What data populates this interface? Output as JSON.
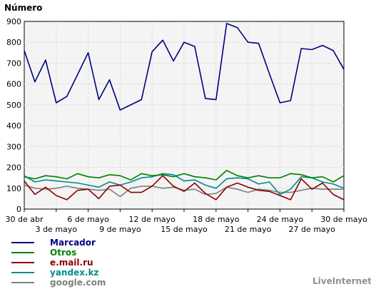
{
  "chart_data": {
    "type": "line",
    "title": "",
    "ylabel": "Número",
    "xlabel": "",
    "ylim": [
      0,
      900
    ],
    "yticks": [
      0,
      100,
      200,
      300,
      400,
      500,
      600,
      700,
      800,
      900
    ],
    "grid": true,
    "legend_placement": "bottom-left",
    "x_tick_labels_top": [
      "30 de abr",
      "6 de mayo",
      "12 de mayo",
      "18 de mayo",
      "24 de mayo",
      "30 de mayo"
    ],
    "x_tick_labels_bottom": [
      "3 de mayo",
      "9 de mayo",
      "15 de mayo",
      "21 de mayo",
      "27 de mayo"
    ],
    "x": [
      "30 de abr",
      "1 de mayo",
      "2 de mayo",
      "3 de mayo",
      "4 de mayo",
      "5 de mayo",
      "6 de mayo",
      "7 de mayo",
      "8 de mayo",
      "9 de mayo",
      "10 de mayo",
      "11 de mayo",
      "12 de mayo",
      "13 de mayo",
      "14 de mayo",
      "15 de mayo",
      "16 de mayo",
      "17 de mayo",
      "18 de mayo",
      "19 de mayo",
      "20 de mayo",
      "21 de mayo",
      "22 de mayo",
      "23 de mayo",
      "24 de mayo",
      "25 de mayo",
      "26 de mayo",
      "27 de mayo",
      "28 de mayo",
      "29 de mayo",
      "30 de mayo"
    ],
    "series": [
      {
        "name": "Marcador",
        "color": "#000080",
        "values": [
          760,
          610,
          715,
          510,
          540,
          645,
          750,
          525,
          620,
          475,
          500,
          525,
          755,
          810,
          710,
          800,
          780,
          530,
          525,
          890,
          870,
          800,
          795,
          650,
          510,
          520,
          770,
          765,
          785,
          760,
          670
        ]
      },
      {
        "name": "Otros",
        "color": "#008000",
        "values": [
          155,
          145,
          160,
          155,
          145,
          170,
          155,
          150,
          165,
          160,
          140,
          170,
          160,
          165,
          155,
          170,
          155,
          150,
          140,
          185,
          160,
          150,
          160,
          150,
          150,
          170,
          165,
          150,
          155,
          130,
          160
        ]
      },
      {
        "name": "e.mail.ru",
        "color": "#8b0000",
        "values": [
          135,
          70,
          105,
          65,
          45,
          90,
          95,
          50,
          110,
          115,
          80,
          80,
          110,
          160,
          110,
          85,
          125,
          75,
          45,
          105,
          125,
          105,
          90,
          85,
          65,
          45,
          145,
          95,
          125,
          70,
          45
        ]
      },
      {
        "name": "yandex.kz",
        "color": "#008b8b",
        "values": [
          160,
          130,
          140,
          135,
          130,
          125,
          115,
          105,
          130,
          115,
          130,
          150,
          155,
          170,
          165,
          135,
          140,
          115,
          100,
          145,
          150,
          145,
          120,
          130,
          70,
          95,
          155,
          150,
          130,
          120,
          100
        ]
      },
      {
        "name": "google.com",
        "color": "#808080",
        "values": [
          115,
          100,
          95,
          100,
          110,
          100,
          95,
          90,
          95,
          60,
          100,
          110,
          110,
          100,
          105,
          90,
          95,
          70,
          75,
          105,
          95,
          80,
          95,
          90,
          80,
          80,
          90,
          100,
          95,
          95,
          95
        ]
      }
    ]
  },
  "branding": {
    "text": "LiveInternet"
  }
}
